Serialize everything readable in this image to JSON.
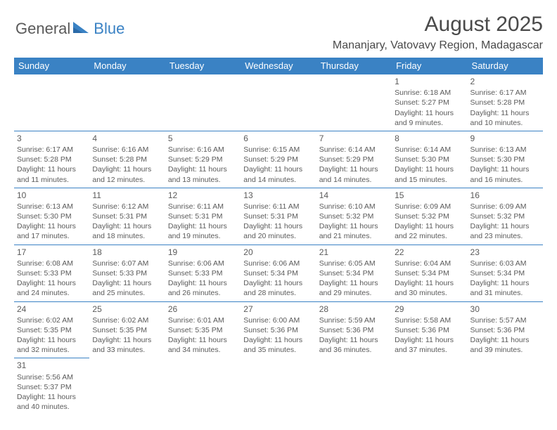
{
  "logo": {
    "text1": "General",
    "text2": "Blue"
  },
  "header": {
    "title": "August 2025",
    "location": "Mananjary, Vatovavy Region, Madagascar"
  },
  "colors": {
    "header_bg": "#3a82c4",
    "header_text": "#ffffff",
    "cell_border": "#3a82c4",
    "body_text": "#5a5a5a",
    "background": "#ffffff"
  },
  "weekdays": [
    "Sunday",
    "Monday",
    "Tuesday",
    "Wednesday",
    "Thursday",
    "Friday",
    "Saturday"
  ],
  "weeks": [
    [
      null,
      null,
      null,
      null,
      null,
      {
        "n": "1",
        "sr": "6:18 AM",
        "ss": "5:27 PM",
        "dl": "11 hours and 9 minutes."
      },
      {
        "n": "2",
        "sr": "6:17 AM",
        "ss": "5:28 PM",
        "dl": "11 hours and 10 minutes."
      }
    ],
    [
      {
        "n": "3",
        "sr": "6:17 AM",
        "ss": "5:28 PM",
        "dl": "11 hours and 11 minutes."
      },
      {
        "n": "4",
        "sr": "6:16 AM",
        "ss": "5:28 PM",
        "dl": "11 hours and 12 minutes."
      },
      {
        "n": "5",
        "sr": "6:16 AM",
        "ss": "5:29 PM",
        "dl": "11 hours and 13 minutes."
      },
      {
        "n": "6",
        "sr": "6:15 AM",
        "ss": "5:29 PM",
        "dl": "11 hours and 14 minutes."
      },
      {
        "n": "7",
        "sr": "6:14 AM",
        "ss": "5:29 PM",
        "dl": "11 hours and 14 minutes."
      },
      {
        "n": "8",
        "sr": "6:14 AM",
        "ss": "5:30 PM",
        "dl": "11 hours and 15 minutes."
      },
      {
        "n": "9",
        "sr": "6:13 AM",
        "ss": "5:30 PM",
        "dl": "11 hours and 16 minutes."
      }
    ],
    [
      {
        "n": "10",
        "sr": "6:13 AM",
        "ss": "5:30 PM",
        "dl": "11 hours and 17 minutes."
      },
      {
        "n": "11",
        "sr": "6:12 AM",
        "ss": "5:31 PM",
        "dl": "11 hours and 18 minutes."
      },
      {
        "n": "12",
        "sr": "6:11 AM",
        "ss": "5:31 PM",
        "dl": "11 hours and 19 minutes."
      },
      {
        "n": "13",
        "sr": "6:11 AM",
        "ss": "5:31 PM",
        "dl": "11 hours and 20 minutes."
      },
      {
        "n": "14",
        "sr": "6:10 AM",
        "ss": "5:32 PM",
        "dl": "11 hours and 21 minutes."
      },
      {
        "n": "15",
        "sr": "6:09 AM",
        "ss": "5:32 PM",
        "dl": "11 hours and 22 minutes."
      },
      {
        "n": "16",
        "sr": "6:09 AM",
        "ss": "5:32 PM",
        "dl": "11 hours and 23 minutes."
      }
    ],
    [
      {
        "n": "17",
        "sr": "6:08 AM",
        "ss": "5:33 PM",
        "dl": "11 hours and 24 minutes."
      },
      {
        "n": "18",
        "sr": "6:07 AM",
        "ss": "5:33 PM",
        "dl": "11 hours and 25 minutes."
      },
      {
        "n": "19",
        "sr": "6:06 AM",
        "ss": "5:33 PM",
        "dl": "11 hours and 26 minutes."
      },
      {
        "n": "20",
        "sr": "6:06 AM",
        "ss": "5:34 PM",
        "dl": "11 hours and 28 minutes."
      },
      {
        "n": "21",
        "sr": "6:05 AM",
        "ss": "5:34 PM",
        "dl": "11 hours and 29 minutes."
      },
      {
        "n": "22",
        "sr": "6:04 AM",
        "ss": "5:34 PM",
        "dl": "11 hours and 30 minutes."
      },
      {
        "n": "23",
        "sr": "6:03 AM",
        "ss": "5:34 PM",
        "dl": "11 hours and 31 minutes."
      }
    ],
    [
      {
        "n": "24",
        "sr": "6:02 AM",
        "ss": "5:35 PM",
        "dl": "11 hours and 32 minutes."
      },
      {
        "n": "25",
        "sr": "6:02 AM",
        "ss": "5:35 PM",
        "dl": "11 hours and 33 minutes."
      },
      {
        "n": "26",
        "sr": "6:01 AM",
        "ss": "5:35 PM",
        "dl": "11 hours and 34 minutes."
      },
      {
        "n": "27",
        "sr": "6:00 AM",
        "ss": "5:36 PM",
        "dl": "11 hours and 35 minutes."
      },
      {
        "n": "28",
        "sr": "5:59 AM",
        "ss": "5:36 PM",
        "dl": "11 hours and 36 minutes."
      },
      {
        "n": "29",
        "sr": "5:58 AM",
        "ss": "5:36 PM",
        "dl": "11 hours and 37 minutes."
      },
      {
        "n": "30",
        "sr": "5:57 AM",
        "ss": "5:36 PM",
        "dl": "11 hours and 39 minutes."
      }
    ],
    [
      {
        "n": "31",
        "sr": "5:56 AM",
        "ss": "5:37 PM",
        "dl": "11 hours and 40 minutes."
      },
      null,
      null,
      null,
      null,
      null,
      null
    ]
  ],
  "labels": {
    "sunrise": "Sunrise:",
    "sunset": "Sunset:",
    "daylight": "Daylight:"
  }
}
